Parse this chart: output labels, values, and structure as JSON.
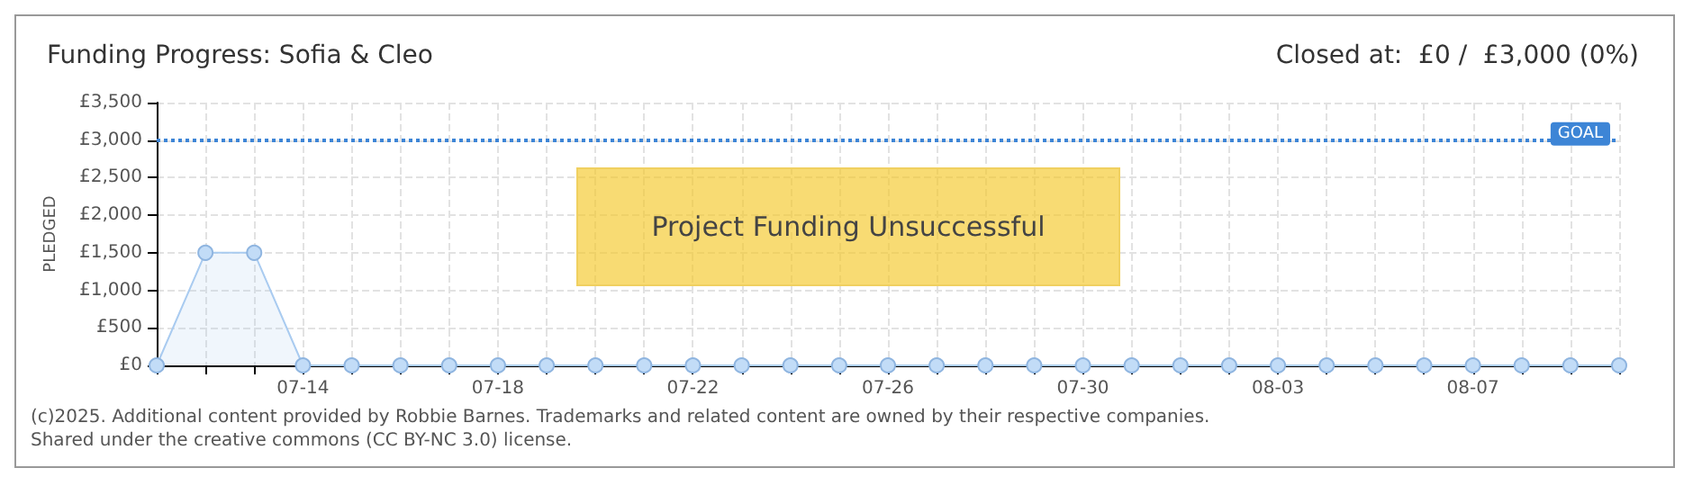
{
  "chart_data": {
    "type": "area",
    "title": "Funding Progress: Sofia & Cleo",
    "subtitle": "Closed at:  £0 /  £3,000 (0%)",
    "ylabel": "PLEDGED",
    "categories": [
      null,
      null,
      null,
      "07-14",
      null,
      null,
      null,
      "07-18",
      null,
      null,
      null,
      "07-22",
      null,
      null,
      null,
      "07-26",
      null,
      null,
      null,
      "07-30",
      null,
      null,
      null,
      "08-03",
      null,
      null,
      null,
      "08-07",
      null,
      null,
      null
    ],
    "series": [
      {
        "color": "#a9cbf0",
        "values": [
          0,
          1500,
          1500,
          0,
          0,
          0,
          0,
          0,
          0,
          0,
          0,
          0,
          0,
          0,
          0,
          0,
          0,
          0,
          0,
          0,
          0,
          0,
          0,
          0,
          0,
          0,
          0,
          0,
          0,
          0,
          0
        ]
      }
    ],
    "ylim": [
      0,
      3500
    ],
    "yticks": [
      {
        "value": 0,
        "label": "£0"
      },
      {
        "value": 500,
        "label": "£500"
      },
      {
        "value": 1000,
        "label": "£1,000"
      },
      {
        "value": 1500,
        "label": "£1,500"
      },
      {
        "value": 2000,
        "label": "£2,000"
      },
      {
        "value": 2500,
        "label": "£2,500"
      },
      {
        "value": 3000,
        "label": "£3,000"
      },
      {
        "value": 3500,
        "label": "£3,500"
      }
    ],
    "ref_lines": [
      {
        "axis": "y",
        "value": 3000,
        "label": "GOAL",
        "color": "#3d85d6",
        "line_style": "dotted"
      }
    ],
    "annotations": [
      "Project Funding Unsuccessful",
      "(c)2025. Additional content provided by Robbie Barnes. Trademarks and related content are owned by their respective companies.",
      "Shared under the creative commons (CC BY-NC 3.0) license."
    ],
    "grid": true,
    "marker": "circle",
    "line_style": "solid"
  }
}
